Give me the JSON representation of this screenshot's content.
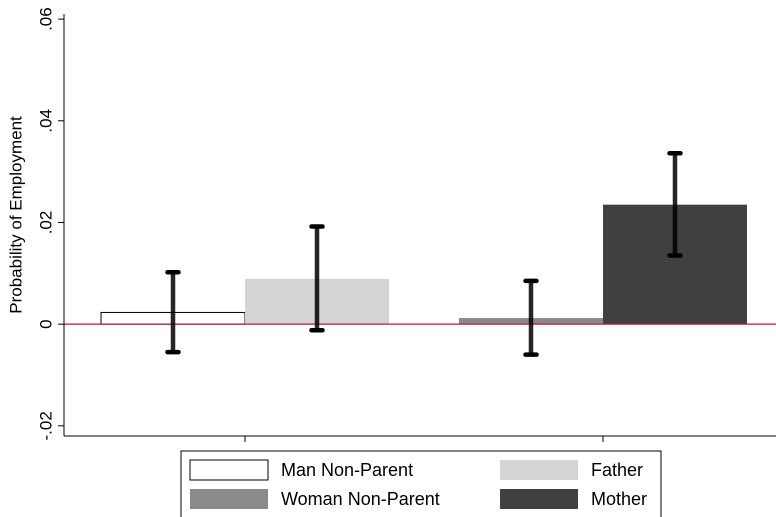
{
  "chart_data": {
    "type": "bar",
    "ylabel": "Probability of Employment",
    "ylim": [
      -0.022,
      0.061
    ],
    "yticks": [
      {
        "value": -0.02,
        "label": "-.02"
      },
      {
        "value": 0,
        "label": "0"
      },
      {
        "value": 0.02,
        "label": ".02"
      },
      {
        "value": 0.04,
        "label": ".04"
      },
      {
        "value": 0.06,
        "label": ".06"
      }
    ],
    "reference_line": {
      "value": 0,
      "color": "#c8103d"
    },
    "legend_position": "bottom",
    "series": [
      {
        "name": "Man Non-Parent",
        "color": "#ffffff",
        "value": 0.0023,
        "ci": [
          -0.0055,
          0.0102
        ],
        "group": 0,
        "slot": 0
      },
      {
        "name": "Father",
        "color": "#d4d4d4",
        "value": 0.0089,
        "ci": [
          -0.0012,
          0.0192
        ],
        "group": 0,
        "slot": 1
      },
      {
        "name": "Woman Non-Parent",
        "color": "#8a8a8a",
        "value": 0.0012,
        "ci": [
          -0.006,
          0.0085
        ],
        "group": 1,
        "slot": 0
      },
      {
        "name": "Mother",
        "color": "#404040",
        "value": 0.0235,
        "ci": [
          0.0135,
          0.0336
        ],
        "group": 1,
        "slot": 1
      }
    ]
  }
}
